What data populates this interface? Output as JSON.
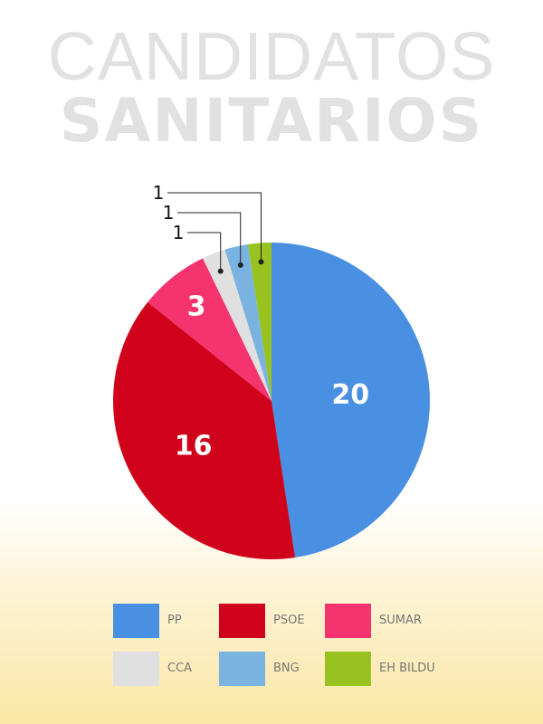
{
  "title": {
    "line1": "CANDIDATOS",
    "line2": "SANITARIOS"
  },
  "chart_data": {
    "type": "pie",
    "categories": [
      "PP",
      "PSOE",
      "SUMAR",
      "CCA",
      "BNG",
      "EH BILDU"
    ],
    "values": [
      20,
      16,
      3,
      1,
      1,
      1
    ],
    "colors": [
      "#4a90e2",
      "#d0021b",
      "#f5336e",
      "#e0e0e0",
      "#7bb3e0",
      "#97c21f"
    ],
    "legend": "bottom",
    "labels": {
      "inside": [
        "20",
        "16",
        "3"
      ],
      "callout": [
        "1",
        "1",
        "1"
      ]
    }
  }
}
